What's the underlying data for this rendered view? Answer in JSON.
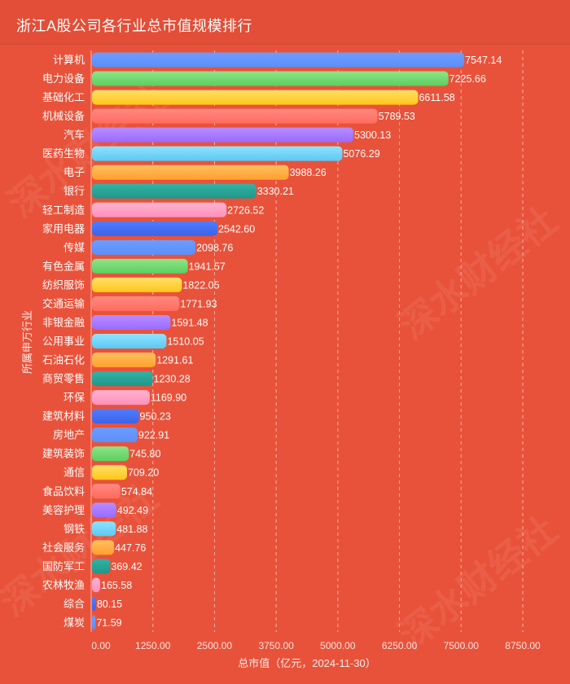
{
  "header": {
    "title": "浙江A股公司各行业总市值规模排行"
  },
  "watermark": {
    "text": "深水财经社"
  },
  "chart_data": {
    "type": "bar",
    "orientation": "horizontal",
    "title": "浙江A股公司各行业总市值规模排行",
    "xlabel": "总市值（亿元，2024-11-30）",
    "ylabel": "所属申万行业",
    "xlim": [
      0,
      8750
    ],
    "xticks": [
      "0.00",
      "1250.00",
      "2500.00",
      "3750.00",
      "5000.00",
      "6250.00",
      "7500.00",
      "8750.00"
    ],
    "grid": true,
    "categories": [
      "计算机",
      "电力设备",
      "基础化工",
      "机械设备",
      "汽车",
      "医药生物",
      "电子",
      "银行",
      "轻工制造",
      "家用电器",
      "传媒",
      "有色金属",
      "纺织服饰",
      "交通运输",
      "非银金融",
      "公用事业",
      "石油石化",
      "商贸零售",
      "环保",
      "建筑材料",
      "房地产",
      "建筑装饰",
      "通信",
      "食品饮料",
      "美容护理",
      "钢铁",
      "社会服务",
      "国防军工",
      "农林牧渔",
      "综合",
      "煤炭"
    ],
    "values": [
      7547.14,
      7225.66,
      6611.58,
      5789.53,
      5300.13,
      5076.29,
      3988.26,
      3330.21,
      2726.52,
      2542.6,
      2098.76,
      1941.57,
      1822.05,
      1771.93,
      1591.48,
      1510.05,
      1291.61,
      1230.28,
      1169.9,
      950.23,
      922.91,
      745.8,
      709.2,
      574.84,
      492.49,
      481.88,
      447.76,
      369.42,
      165.58,
      80.15,
      71.59
    ],
    "value_labels": [
      "7547.14",
      "7225.66",
      "6611.58",
      "5789.53",
      "5300.13",
      "5076.29",
      "3988.26",
      "3330.21",
      "2726.52",
      "2542.60",
      "2098.76",
      "1941.57",
      "1822.05",
      "1771.93",
      "1591.48",
      "1510.05",
      "1291.61",
      "1230.28",
      "1169.90",
      "950.23",
      "922.91",
      "745.80",
      "709.20",
      "574.84",
      "492.49",
      "481.88",
      "447.76",
      "369.42",
      "165.58",
      "80.15",
      "71.59"
    ],
    "palette": [
      [
        "#6d9cff",
        "#5b8ff9"
      ],
      [
        "#8fe388",
        "#5ad05f"
      ],
      [
        "#ffe066",
        "#ffc61a"
      ],
      [
        "#ff8a80",
        "#ff6b5e"
      ],
      [
        "#b88cff",
        "#9a6bff"
      ],
      [
        "#8fe3ff",
        "#5cc8f2"
      ],
      [
        "#ffbf5e",
        "#ffa02e"
      ],
      [
        "#33b3a6",
        "#1f978a"
      ],
      [
        "#ffb3d1",
        "#ff90bb"
      ],
      [
        "#4f7cff",
        "#3d63e8"
      ]
    ]
  }
}
